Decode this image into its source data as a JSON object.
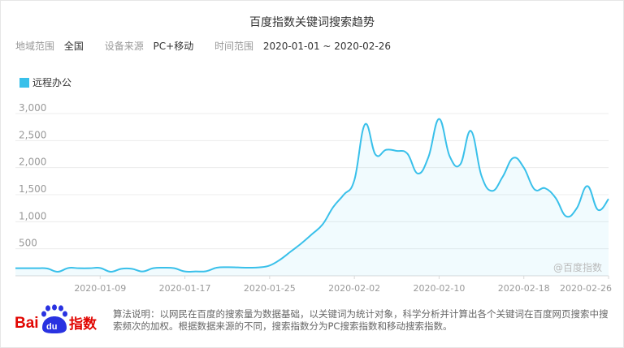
{
  "header": {
    "title": "百度指数关键词搜索趋势"
  },
  "filters": [
    {
      "label": "地域范围",
      "value": "全国"
    },
    {
      "label": "设备来源",
      "value": "PC+移动"
    },
    {
      "label": "时间范围",
      "value": "2020-01-01 ~ 2020-02-26"
    }
  ],
  "colors": {
    "series": "#39c0ea",
    "grid": "#ececec",
    "axis_text": "#999999"
  },
  "chart_data": {
    "type": "area",
    "title": "百度指数关键词搜索趋势",
    "xlabel": "",
    "ylabel": "",
    "ylim": [
      0,
      3000
    ],
    "yticks": [
      500,
      1000,
      1500,
      2000,
      2500,
      3000
    ],
    "ytick_labels": [
      "500",
      "1,000",
      "1,500",
      "2,000",
      "2,500",
      "3,000"
    ],
    "xticks": [
      "2020-01-09",
      "2020-01-17",
      "2020-01-25",
      "2020-02-02",
      "2020-02-10",
      "2020-02-18",
      "2020-02-26"
    ],
    "grid": true,
    "legend_position": "top-left",
    "watermark": "@百度指数",
    "dates": [
      "2020-01-01",
      "2020-01-02",
      "2020-01-03",
      "2020-01-04",
      "2020-01-05",
      "2020-01-06",
      "2020-01-07",
      "2020-01-08",
      "2020-01-09",
      "2020-01-10",
      "2020-01-11",
      "2020-01-12",
      "2020-01-13",
      "2020-01-14",
      "2020-01-15",
      "2020-01-16",
      "2020-01-17",
      "2020-01-18",
      "2020-01-19",
      "2020-01-20",
      "2020-01-21",
      "2020-01-22",
      "2020-01-23",
      "2020-01-24",
      "2020-01-25",
      "2020-01-26",
      "2020-01-27",
      "2020-01-28",
      "2020-01-29",
      "2020-01-30",
      "2020-01-31",
      "2020-02-01",
      "2020-02-02",
      "2020-02-03",
      "2020-02-04",
      "2020-02-05",
      "2020-02-06",
      "2020-02-07",
      "2020-02-08",
      "2020-02-09",
      "2020-02-10",
      "2020-02-11",
      "2020-02-12",
      "2020-02-13",
      "2020-02-14",
      "2020-02-15",
      "2020-02-16",
      "2020-02-17",
      "2020-02-18",
      "2020-02-19",
      "2020-02-20",
      "2020-02-21",
      "2020-02-22",
      "2020-02-23",
      "2020-02-24",
      "2020-02-25",
      "2020-02-26"
    ],
    "series": [
      {
        "name": "远程办公",
        "values": [
          140,
          140,
          140,
          135,
          75,
          145,
          140,
          140,
          145,
          75,
          130,
          130,
          80,
          140,
          150,
          140,
          80,
          80,
          85,
          150,
          160,
          155,
          150,
          155,
          190,
          300,
          450,
          600,
          770,
          950,
          1270,
          1500,
          1770,
          2800,
          2240,
          2330,
          2310,
          2260,
          1890,
          2200,
          2900,
          2210,
          2060,
          2680,
          1850,
          1570,
          1830,
          2180,
          2000,
          1600,
          1620,
          1440,
          1100,
          1250,
          1660,
          1220,
          1420
        ]
      }
    ]
  },
  "footer": {
    "logo_text": "Bai du 指数",
    "note": "算法说明：以网民在百度的搜索量为数据基础，以关键词为统计对象，科学分析并计算出各个关键词在百度网页搜索中搜索频次的加权。根据数据来源的不同，搜索指数分为PC搜索指数和移动搜索指数。"
  }
}
